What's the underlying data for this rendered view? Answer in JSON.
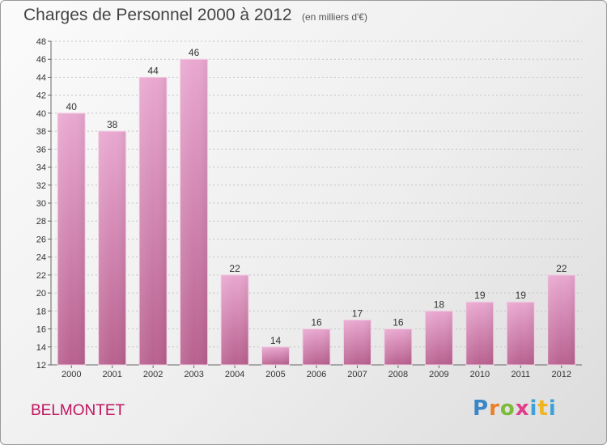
{
  "title": "Charges de Personnel 2000 à 2012",
  "subtitle": "(en milliers d'€)",
  "commune": "BELMONTET",
  "logo": {
    "text": "Proxiti"
  },
  "colors": {
    "bar": "#c9699e",
    "bar_light": "#e9a8d0",
    "commune": "#c0135f"
  },
  "chart_data": {
    "type": "bar",
    "title": "Charges de Personnel 2000 à 2012",
    "subtitle": "(en milliers d'€)",
    "xlabel": "",
    "ylabel": "",
    "categories": [
      "2000",
      "2001",
      "2002",
      "2003",
      "2004",
      "2005",
      "2006",
      "2007",
      "2008",
      "2009",
      "2010",
      "2011",
      "2012"
    ],
    "values": [
      40,
      38,
      44,
      46,
      22,
      14,
      16,
      17,
      16,
      18,
      19,
      19,
      22
    ],
    "ylim": [
      12,
      48
    ],
    "yticks": [
      12,
      14,
      16,
      18,
      20,
      22,
      24,
      26,
      28,
      30,
      32,
      34,
      36,
      38,
      40,
      42,
      44,
      46,
      48
    ],
    "grid": true,
    "legend": "none"
  }
}
